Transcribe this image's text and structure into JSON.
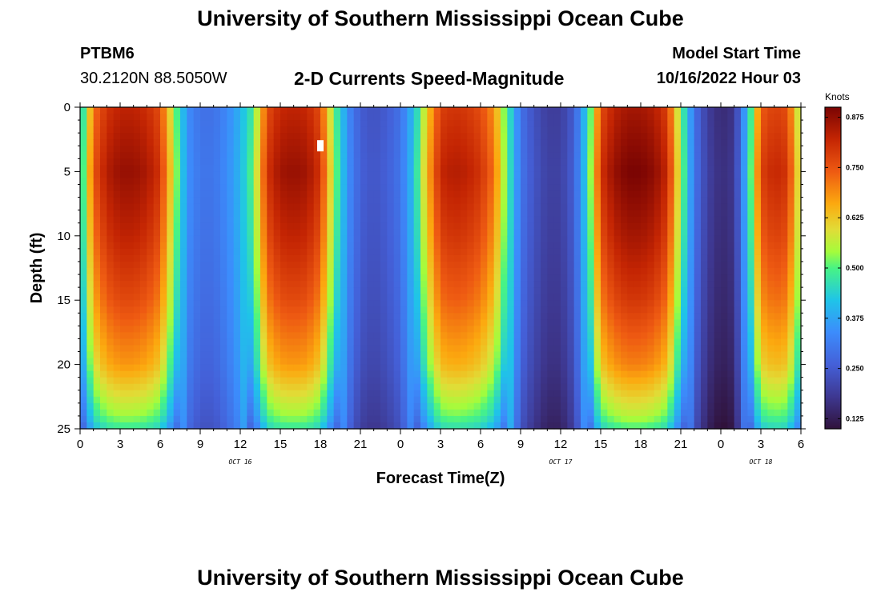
{
  "page": {
    "title_top": "University of Southern Mississippi Ocean Cube",
    "title_bottom": "University of Southern Mississippi Ocean Cube",
    "station": "PTBM6",
    "coords": "30.2120N  88.5050W",
    "plot_title": "2-D Currents Speed-Magnitude",
    "model_start_label": "Model Start Time",
    "model_start_value": "10/16/2022 Hour 03"
  },
  "chart_data": {
    "type": "heatmap",
    "title": "2-D Currents Speed-Magnitude",
    "xlabel": "Forecast Time(Z)",
    "ylabel": "Depth (ft)",
    "x_hours_range": [
      0,
      54
    ],
    "x_tick_hours": [
      0,
      3,
      6,
      9,
      12,
      15,
      18,
      21,
      24,
      27,
      30,
      33,
      36,
      39,
      42,
      45,
      48,
      51,
      54
    ],
    "x_tick_labels": [
      "0",
      "3",
      "6",
      "9",
      "12",
      "15",
      "18",
      "21",
      "0",
      "3",
      "6",
      "9",
      "12",
      "15",
      "18",
      "21",
      "0",
      "3",
      "6"
    ],
    "day_labels": [
      {
        "hour": 12,
        "text": "OCT 16"
      },
      {
        "hour": 36,
        "text": "OCT 17"
      },
      {
        "hour": 51,
        "text": "OCT 18"
      }
    ],
    "y_range_ft": [
      0,
      25
    ],
    "y_tick_values": [
      0,
      5,
      10,
      15,
      20,
      25
    ],
    "y_tick_labels": [
      "0",
      "5",
      "10",
      "15",
      "20",
      "25"
    ],
    "colorbar": {
      "title": "Knots",
      "range": [
        0.1,
        0.9
      ],
      "tick_values": [
        0.125,
        0.25,
        0.375,
        0.5,
        0.625,
        0.75,
        0.875
      ],
      "tick_labels": [
        "0.125",
        "0.250",
        "0.375",
        "0.500",
        "0.625",
        "0.750",
        "0.875"
      ]
    },
    "surface_speed_profile": {
      "hours": [
        0,
        1,
        2,
        3,
        4,
        5,
        6,
        7,
        8,
        9,
        10,
        11,
        12,
        13,
        14,
        15,
        16,
        17,
        18,
        19,
        20,
        21,
        22,
        23,
        24,
        25,
        26,
        27,
        28,
        29,
        30,
        31,
        32,
        33,
        34,
        35,
        36,
        37,
        38,
        39,
        40,
        41,
        42,
        43,
        44,
        45,
        46,
        47,
        48,
        49,
        50,
        51,
        52,
        53,
        54
      ],
      "knots": [
        0.42,
        0.75,
        0.84,
        0.87,
        0.87,
        0.85,
        0.8,
        0.58,
        0.35,
        0.3,
        0.3,
        0.34,
        0.4,
        0.52,
        0.8,
        0.86,
        0.87,
        0.86,
        0.8,
        0.55,
        0.35,
        0.26,
        0.24,
        0.26,
        0.3,
        0.42,
        0.65,
        0.82,
        0.84,
        0.83,
        0.8,
        0.72,
        0.5,
        0.3,
        0.24,
        0.2,
        0.2,
        0.26,
        0.45,
        0.8,
        0.87,
        0.9,
        0.9,
        0.88,
        0.82,
        0.55,
        0.3,
        0.2,
        0.16,
        0.18,
        0.42,
        0.78,
        0.82,
        0.8,
        0.55
      ]
    },
    "depth_speed_factor": {
      "depths_ft": [
        0,
        5,
        10,
        15,
        20,
        22,
        24,
        25
      ],
      "factor": [
        0.95,
        1.0,
        0.95,
        0.88,
        0.78,
        0.7,
        0.62,
        0.55
      ]
    },
    "missing_cells": [
      {
        "hour": 18,
        "depth_ft": 3
      }
    ]
  }
}
